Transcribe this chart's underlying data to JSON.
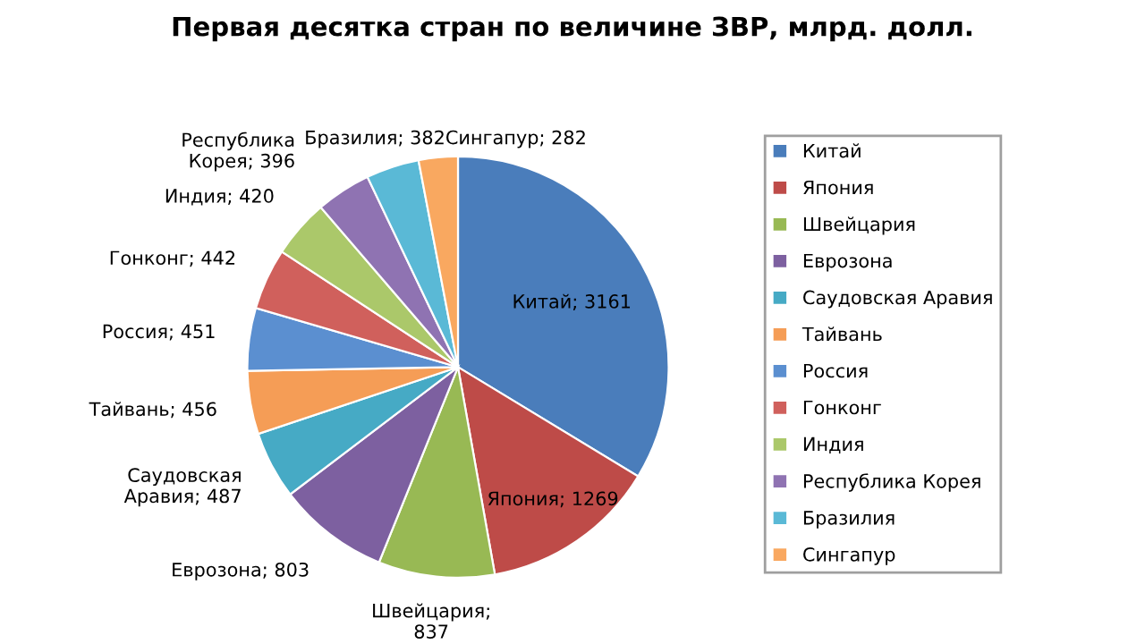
{
  "chart_data": {
    "type": "pie",
    "title": "Первая десятка стран по величине ЗВР, млрд. долл.",
    "categories": [
      "Китай",
      "Япония",
      "Швейцария",
      "Еврозона",
      "Саудовская Аравия",
      "Тайвань",
      "Россия",
      "Гонконг",
      "Индия",
      "Республика Корея",
      "Бразилия",
      "Сингапур"
    ],
    "values": [
      3161,
      1269,
      837,
      803,
      487,
      456,
      451,
      442,
      420,
      396,
      382,
      282
    ],
    "colors": [
      "#4a7dbb",
      "#be4b48",
      "#98b954",
      "#7d60a0",
      "#46aac5",
      "#f59d56",
      "#5b8fd0",
      "#d0605c",
      "#abc86a",
      "#8f73b2",
      "#5ab9d6",
      "#f9a860"
    ],
    "value_labels": [
      "Китай; 3161",
      "Япония; 1269",
      "Швейцария;\n837",
      "Еврозона; 803",
      "Саудовская\nАравия; 487",
      "Тайвань; 456",
      "Россия; 451",
      "Гонконг; 442",
      "Индия; 420",
      "Республика\nКорея; 396",
      "Бразилия; 382",
      "Сингапур; 282"
    ],
    "legend": "right"
  }
}
